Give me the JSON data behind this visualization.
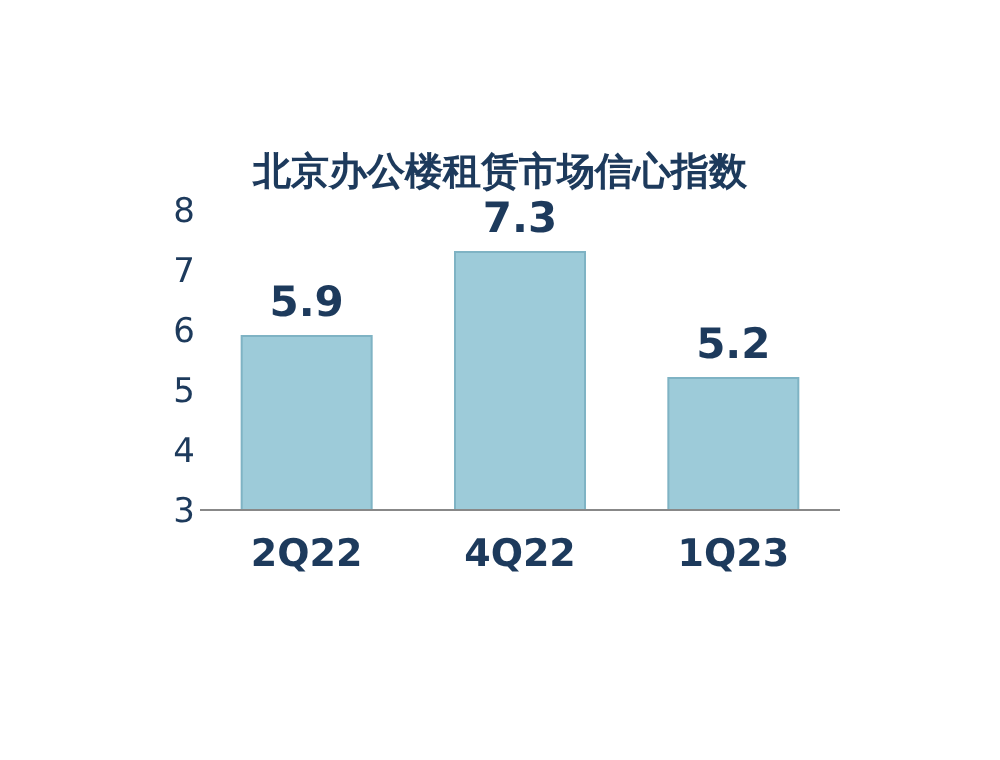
{
  "chart_data": {
    "type": "bar",
    "title": "北京办公楼租赁市场信心指数",
    "categories": [
      "2Q22",
      "4Q22",
      "1Q23"
    ],
    "values": [
      5.9,
      7.3,
      5.2
    ],
    "color": "#9dcbd9",
    "ylim": [
      3,
      8
    ],
    "yticks": [
      3,
      4,
      5,
      6,
      7,
      8
    ],
    "data_labels": true
  }
}
